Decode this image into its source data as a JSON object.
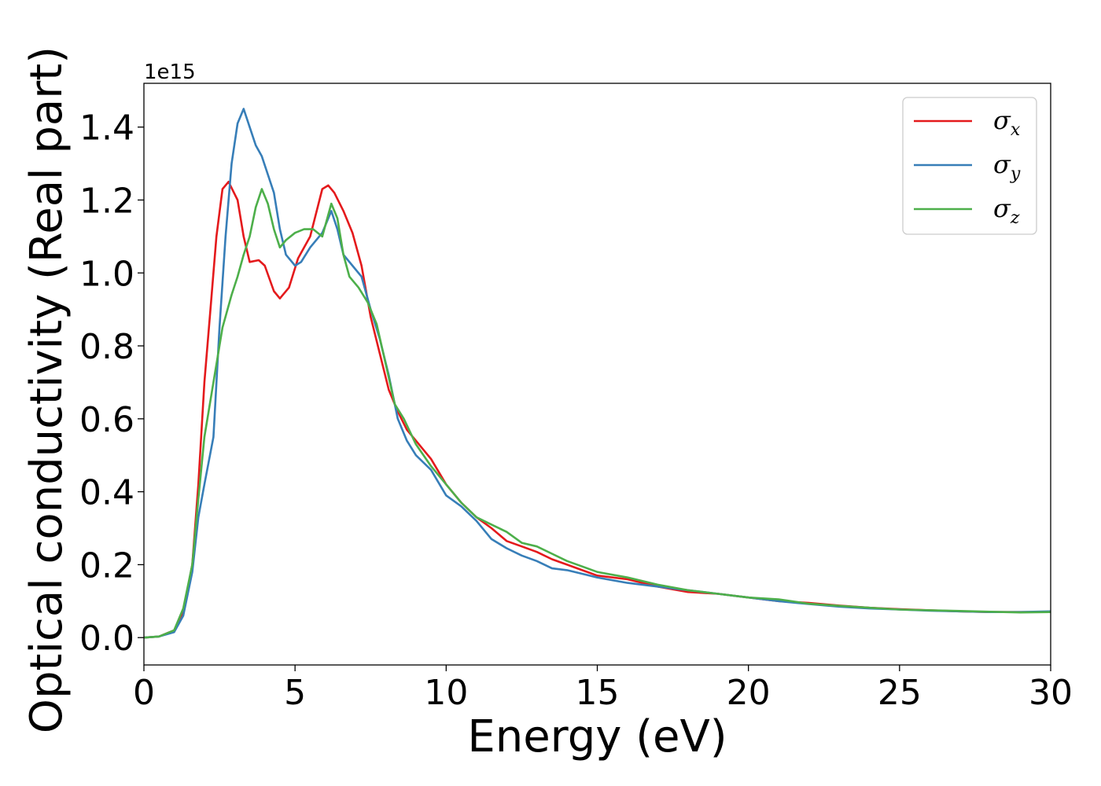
{
  "chart_data": {
    "type": "line",
    "xlabel": "Energy (eV)",
    "ylabel": "Optical conductivity (Real part)",
    "y_offset_label": "1e15",
    "y_scale": 1000000000000000.0,
    "xlim": [
      0,
      30
    ],
    "ylim": [
      -0.075,
      1.52
    ],
    "x_ticks": [
      0,
      5,
      10,
      15,
      20,
      25,
      30
    ],
    "x_tick_labels": [
      "0",
      "5",
      "10",
      "15",
      "20",
      "25",
      "30"
    ],
    "y_ticks": [
      0.0,
      0.2,
      0.4,
      0.6,
      0.8,
      1.0,
      1.2,
      1.4
    ],
    "y_tick_labels": [
      "0.0",
      "0.2",
      "0.4",
      "0.6",
      "0.8",
      "1.0",
      "1.2",
      "1.4"
    ],
    "grid": false,
    "legend_position": "top-right",
    "series": [
      {
        "name": "σx",
        "legend_symbol": "σ",
        "legend_sub": "x",
        "color": "#e41a1c",
        "points": [
          [
            0,
            0
          ],
          [
            0.5,
            0.003
          ],
          [
            1.0,
            0.02
          ],
          [
            1.3,
            0.07
          ],
          [
            1.6,
            0.2
          ],
          [
            1.8,
            0.42
          ],
          [
            2.0,
            0.7
          ],
          [
            2.2,
            0.9
          ],
          [
            2.4,
            1.1
          ],
          [
            2.6,
            1.23
          ],
          [
            2.8,
            1.25
          ],
          [
            3.1,
            1.2
          ],
          [
            3.3,
            1.1
          ],
          [
            3.5,
            1.03
          ],
          [
            3.8,
            1.035
          ],
          [
            4.0,
            1.02
          ],
          [
            4.3,
            0.95
          ],
          [
            4.5,
            0.93
          ],
          [
            4.8,
            0.96
          ],
          [
            5.1,
            1.04
          ],
          [
            5.5,
            1.1
          ],
          [
            5.9,
            1.23
          ],
          [
            6.1,
            1.24
          ],
          [
            6.3,
            1.22
          ],
          [
            6.6,
            1.17
          ],
          [
            6.9,
            1.11
          ],
          [
            7.2,
            1.02
          ],
          [
            7.5,
            0.88
          ],
          [
            7.8,
            0.78
          ],
          [
            8.1,
            0.68
          ],
          [
            8.4,
            0.62
          ],
          [
            8.7,
            0.57
          ],
          [
            9.0,
            0.54
          ],
          [
            9.5,
            0.49
          ],
          [
            10.0,
            0.42
          ],
          [
            10.5,
            0.37
          ],
          [
            11.0,
            0.33
          ],
          [
            11.5,
            0.3
          ],
          [
            12.0,
            0.265
          ],
          [
            12.5,
            0.25
          ],
          [
            13.0,
            0.235
          ],
          [
            13.5,
            0.215
          ],
          [
            14.0,
            0.2
          ],
          [
            14.5,
            0.185
          ],
          [
            15.0,
            0.17
          ],
          [
            16.0,
            0.16
          ],
          [
            17.0,
            0.14
          ],
          [
            18.0,
            0.125
          ],
          [
            19.0,
            0.12
          ],
          [
            20.0,
            0.11
          ],
          [
            21.0,
            0.1
          ],
          [
            22.0,
            0.095
          ],
          [
            23.0,
            0.088
          ],
          [
            24.0,
            0.082
          ],
          [
            25.0,
            0.078
          ],
          [
            26.0,
            0.075
          ],
          [
            27.0,
            0.072
          ],
          [
            28.0,
            0.07
          ],
          [
            29.0,
            0.07
          ],
          [
            30.0,
            0.07
          ]
        ]
      },
      {
        "name": "σy",
        "legend_symbol": "σ",
        "legend_sub": "y",
        "color": "#377eb8",
        "points": [
          [
            0,
            0
          ],
          [
            0.5,
            0.003
          ],
          [
            1.0,
            0.015
          ],
          [
            1.3,
            0.06
          ],
          [
            1.6,
            0.18
          ],
          [
            1.8,
            0.33
          ],
          [
            2.0,
            0.42
          ],
          [
            2.3,
            0.55
          ],
          [
            2.5,
            0.85
          ],
          [
            2.7,
            1.1
          ],
          [
            2.9,
            1.3
          ],
          [
            3.1,
            1.41
          ],
          [
            3.3,
            1.45
          ],
          [
            3.5,
            1.4
          ],
          [
            3.7,
            1.35
          ],
          [
            3.9,
            1.32
          ],
          [
            4.1,
            1.27
          ],
          [
            4.3,
            1.22
          ],
          [
            4.5,
            1.12
          ],
          [
            4.7,
            1.05
          ],
          [
            5.0,
            1.02
          ],
          [
            5.2,
            1.03
          ],
          [
            5.5,
            1.07
          ],
          [
            5.9,
            1.11
          ],
          [
            6.2,
            1.17
          ],
          [
            6.4,
            1.12
          ],
          [
            6.6,
            1.05
          ],
          [
            6.9,
            1.02
          ],
          [
            7.2,
            0.99
          ],
          [
            7.5,
            0.9
          ],
          [
            7.8,
            0.82
          ],
          [
            8.1,
            0.72
          ],
          [
            8.4,
            0.6
          ],
          [
            8.7,
            0.54
          ],
          [
            9.0,
            0.5
          ],
          [
            9.5,
            0.46
          ],
          [
            10.0,
            0.39
          ],
          [
            10.5,
            0.36
          ],
          [
            11.0,
            0.32
          ],
          [
            11.5,
            0.27
          ],
          [
            12.0,
            0.245
          ],
          [
            12.5,
            0.225
          ],
          [
            13.0,
            0.21
          ],
          [
            13.5,
            0.19
          ],
          [
            14.0,
            0.185
          ],
          [
            14.5,
            0.175
          ],
          [
            15.0,
            0.165
          ],
          [
            16.0,
            0.15
          ],
          [
            17.0,
            0.14
          ],
          [
            18.0,
            0.13
          ],
          [
            19.0,
            0.12
          ],
          [
            20.0,
            0.11
          ],
          [
            21.0,
            0.1
          ],
          [
            22.0,
            0.092
          ],
          [
            23.0,
            0.085
          ],
          [
            24.0,
            0.08
          ],
          [
            25.0,
            0.077
          ],
          [
            26.0,
            0.074
          ],
          [
            27.0,
            0.072
          ],
          [
            28.0,
            0.07
          ],
          [
            29.0,
            0.07
          ],
          [
            30.0,
            0.072
          ]
        ]
      },
      {
        "name": "σz",
        "legend_symbol": "σ",
        "legend_sub": "z",
        "color": "#4daf4a",
        "points": [
          [
            0,
            0
          ],
          [
            0.5,
            0.003
          ],
          [
            1.0,
            0.02
          ],
          [
            1.3,
            0.08
          ],
          [
            1.6,
            0.2
          ],
          [
            1.8,
            0.38
          ],
          [
            2.0,
            0.55
          ],
          [
            2.3,
            0.7
          ],
          [
            2.6,
            0.85
          ],
          [
            2.9,
            0.94
          ],
          [
            3.1,
            0.99
          ],
          [
            3.3,
            1.05
          ],
          [
            3.5,
            1.1
          ],
          [
            3.7,
            1.18
          ],
          [
            3.9,
            1.23
          ],
          [
            4.1,
            1.19
          ],
          [
            4.3,
            1.12
          ],
          [
            4.5,
            1.07
          ],
          [
            4.7,
            1.09
          ],
          [
            5.0,
            1.11
          ],
          [
            5.3,
            1.12
          ],
          [
            5.6,
            1.12
          ],
          [
            5.9,
            1.1
          ],
          [
            6.2,
            1.19
          ],
          [
            6.4,
            1.15
          ],
          [
            6.6,
            1.05
          ],
          [
            6.8,
            0.99
          ],
          [
            7.1,
            0.96
          ],
          [
            7.4,
            0.92
          ],
          [
            7.7,
            0.86
          ],
          [
            8.0,
            0.75
          ],
          [
            8.3,
            0.64
          ],
          [
            8.6,
            0.6
          ],
          [
            9.0,
            0.53
          ],
          [
            9.5,
            0.47
          ],
          [
            10.0,
            0.42
          ],
          [
            10.5,
            0.37
          ],
          [
            11.0,
            0.33
          ],
          [
            11.5,
            0.31
          ],
          [
            12.0,
            0.29
          ],
          [
            12.5,
            0.26
          ],
          [
            13.0,
            0.25
          ],
          [
            13.5,
            0.23
          ],
          [
            14.0,
            0.21
          ],
          [
            14.5,
            0.195
          ],
          [
            15.0,
            0.18
          ],
          [
            16.0,
            0.165
          ],
          [
            17.0,
            0.145
          ],
          [
            18.0,
            0.13
          ],
          [
            19.0,
            0.12
          ],
          [
            20.0,
            0.11
          ],
          [
            21.0,
            0.105
          ],
          [
            22.0,
            0.093
          ],
          [
            23.0,
            0.087
          ],
          [
            24.0,
            0.082
          ],
          [
            25.0,
            0.077
          ],
          [
            26.0,
            0.075
          ],
          [
            27.0,
            0.073
          ],
          [
            28.0,
            0.071
          ],
          [
            29.0,
            0.069
          ],
          [
            30.0,
            0.07
          ]
        ]
      }
    ]
  }
}
